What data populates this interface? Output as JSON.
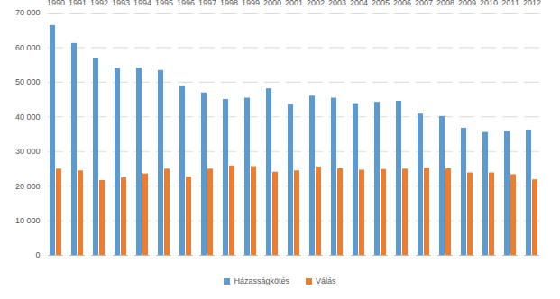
{
  "chart_data": {
    "type": "bar",
    "categories": [
      "1990",
      "1991",
      "1992",
      "1993",
      "1994",
      "1995",
      "1996",
      "1997",
      "1998",
      "1999",
      "2000",
      "2001",
      "2002",
      "2003",
      "2004",
      "2005",
      "2006",
      "2007",
      "2008",
      "2009",
      "2010",
      "2011",
      "2012"
    ],
    "series": [
      {
        "name": "Házasságkötés",
        "color": "#5b9bd5",
        "values": [
          66400,
          61200,
          57000,
          54000,
          54100,
          53400,
          48900,
          46900,
          45000,
          45400,
          48100,
          43600,
          46000,
          45400,
          43800,
          44200,
          44500,
          40800,
          40100,
          36700,
          35500,
          35800,
          36200
        ]
      },
      {
        "name": "Válás",
        "color": "#ed7d31",
        "values": [
          24900,
          24400,
          21600,
          22400,
          23500,
          24900,
          22600,
          24900,
          25800,
          25600,
          24000,
          24400,
          25500,
          25000,
          24600,
          24800,
          24900,
          25200,
          25000,
          23800,
          23800,
          23300,
          21800
        ]
      }
    ],
    "ylim": [
      0,
      70000
    ],
    "yticks": [
      0,
      {
        "value": 10000,
        "label": "10 000"
      },
      {
        "value": 20000,
        "label": "20 000"
      },
      {
        "value": 30000,
        "label": "30 000"
      },
      {
        "value": 40000,
        "label": "40 000"
      },
      {
        "value": 50000,
        "label": "50 000"
      },
      {
        "value": 60000,
        "label": "60 000"
      },
      {
        "value": 70000,
        "label": "70 000"
      }
    ],
    "grid": true,
    "legend": "bottom"
  }
}
